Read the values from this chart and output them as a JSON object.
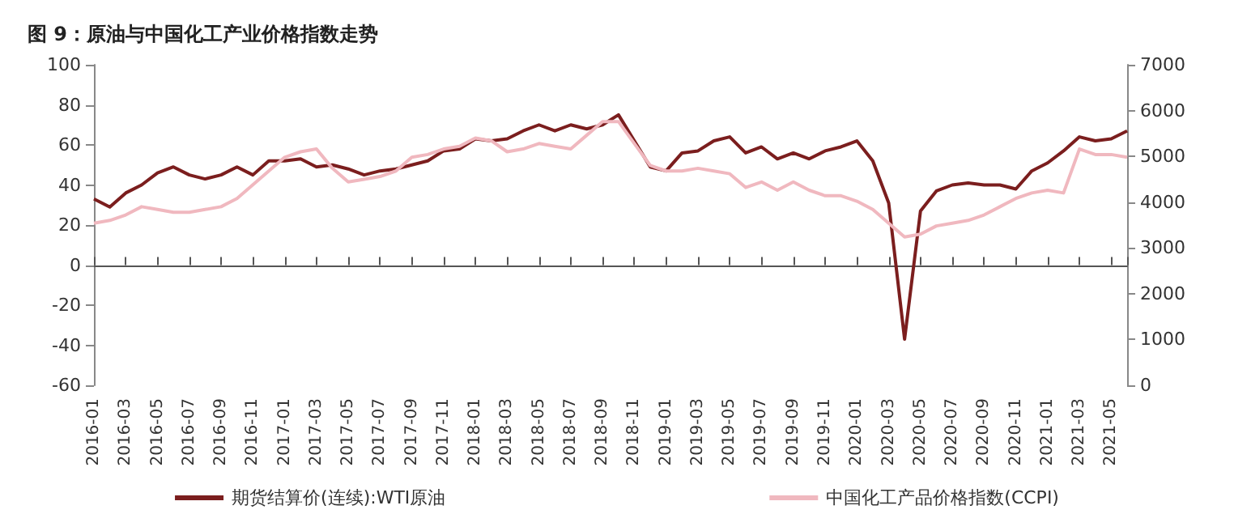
{
  "chart_data": {
    "type": "line",
    "title": "图 9：原油与中国化工产业价格指数走势",
    "categories": [
      "2016-01",
      null,
      "2016-03",
      null,
      "2016-05",
      null,
      "2016-07",
      null,
      "2016-09",
      null,
      "2016-11",
      null,
      "2017-01",
      null,
      "2017-03",
      null,
      "2017-05",
      null,
      "2017-07",
      null,
      "2017-09",
      null,
      "2017-11",
      null,
      "2018-01",
      null,
      "2018-03",
      null,
      "2018-05",
      null,
      "2018-07",
      null,
      "2018-09",
      null,
      "2018-11",
      null,
      "2019-01",
      null,
      "2019-03",
      null,
      "2019-05",
      null,
      "2019-07",
      null,
      "2019-09",
      null,
      "2019-11",
      null,
      "2020-01",
      null,
      "2020-03",
      null,
      "2020-05",
      null,
      "2020-07",
      null,
      "2020-09",
      null,
      "2020-11",
      null,
      "2021-01",
      null,
      "2021-03",
      null,
      "2021-05",
      null
    ],
    "series": [
      {
        "name": "期货结算价(连续):WTI原油",
        "color": "#7b1e1e",
        "values": [
          33,
          29,
          36,
          40,
          46,
          49,
          45,
          43,
          45,
          49,
          45,
          52,
          52,
          53,
          49,
          50,
          48,
          45,
          47,
          48,
          50,
          52,
          57,
          58,
          63,
          62,
          63,
          67,
          70,
          67,
          70,
          68,
          70,
          75,
          62,
          49,
          47,
          56,
          57,
          62,
          64,
          56,
          59,
          53,
          56,
          53,
          57,
          59,
          62,
          52,
          31,
          -37,
          27,
          37,
          40,
          41,
          40,
          40,
          38,
          47,
          51,
          57,
          64,
          62,
          63,
          67
        ]
      },
      {
        "name": "中国化工产品价格指数(CCPI)",
        "color": "#f0b8bf",
        "axis": "y2",
        "values": [
          3540,
          3600,
          3720,
          3900,
          3840,
          3780,
          3780,
          3840,
          3900,
          4080,
          4380,
          4680,
          4980,
          5100,
          5160,
          4740,
          4440,
          4500,
          4560,
          4680,
          4980,
          5040,
          5160,
          5220,
          5400,
          5340,
          5100,
          5160,
          5280,
          5220,
          5160,
          5460,
          5760,
          5760,
          5280,
          4800,
          4680,
          4680,
          4740,
          4680,
          4620,
          4320,
          4440,
          4260,
          4440,
          4260,
          4140,
          4140,
          4020,
          3840,
          3540,
          3240,
          3300,
          3480,
          3540,
          3600,
          3720,
          3900,
          4080,
          4200,
          4260,
          4200,
          5160,
          5040,
          5040,
          4980
        ]
      }
    ],
    "ylim": [
      -60,
      100
    ],
    "yticks": [
      -60,
      -40,
      -20,
      0,
      20,
      40,
      60,
      80,
      100
    ],
    "y2lim": [
      0,
      7000
    ],
    "y2ticks": [
      0,
      1000,
      2000,
      3000,
      4000,
      5000,
      6000,
      7000
    ],
    "legend": "bottom",
    "marker": "none",
    "line_style": "solid"
  }
}
